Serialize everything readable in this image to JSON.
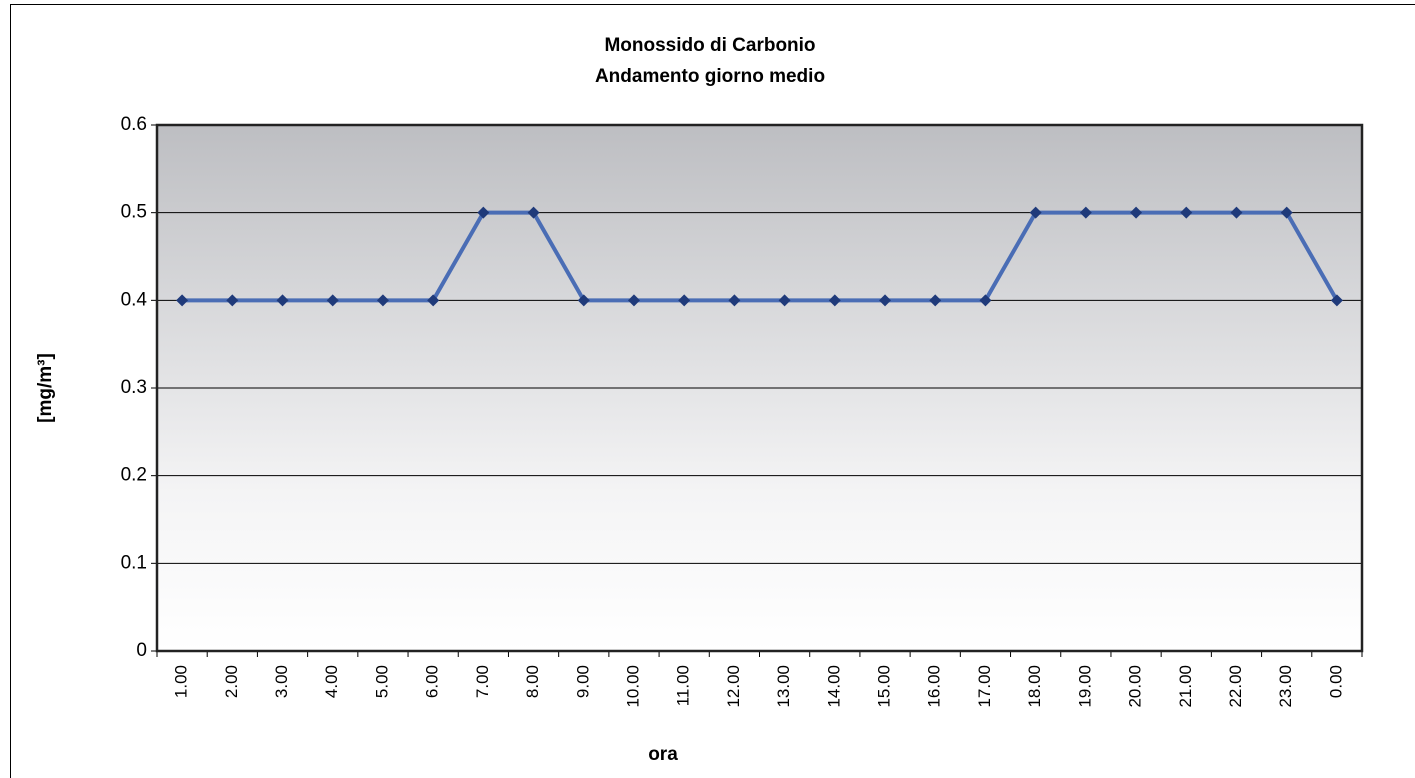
{
  "chart_data": {
    "type": "line",
    "title": "Monossido di Carbonio",
    "subtitle": "Andamento giorno medio",
    "x_label": "ora",
    "y_label": "[mg/m³]",
    "categories": [
      "1.00",
      "2.00",
      "3.00",
      "4.00",
      "5.00",
      "6.00",
      "7.00",
      "8.00",
      "9.00",
      "10.00",
      "11.00",
      "12.00",
      "13.00",
      "14.00",
      "15.00",
      "16.00",
      "17.00",
      "18.00",
      "19.00",
      "20.00",
      "21.00",
      "22.00",
      "23.00",
      "0.00"
    ],
    "values": [
      0.4,
      0.4,
      0.4,
      0.4,
      0.4,
      0.4,
      0.5,
      0.5,
      0.4,
      0.4,
      0.4,
      0.4,
      0.4,
      0.4,
      0.4,
      0.4,
      0.4,
      0.5,
      0.5,
      0.5,
      0.5,
      0.5,
      0.5,
      0.4
    ],
    "color": "#4a6db5",
    "marker_color": "#1f3a7a",
    "ylim": [
      0,
      0.6
    ],
    "yticks": [
      0,
      0.1,
      0.2,
      0.3,
      0.4,
      0.5,
      0.6
    ],
    "grid": true
  }
}
